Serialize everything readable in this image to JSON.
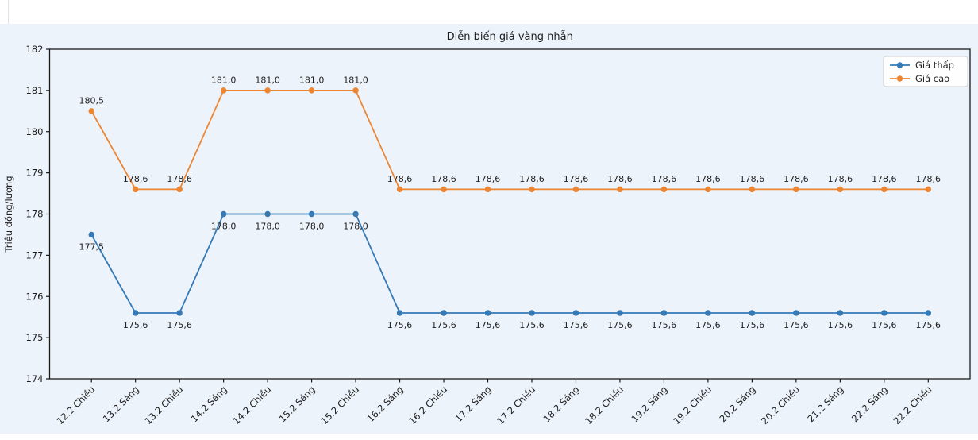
{
  "colors": {
    "figure_background": "#edf3fb",
    "axis": "#1a1a1a",
    "text": "#1f1f1f",
    "legend_border": "#cccccc",
    "legend_background": "#ffffff"
  },
  "chart_data": {
    "type": "line",
    "title": "Diễn biến giá vàng nhẫn",
    "xlabel": "",
    "ylabel": "Triệu đồng/lượng",
    "ylim": [
      174,
      182
    ],
    "yticks": [
      174,
      175,
      176,
      177,
      178,
      179,
      180,
      181,
      182
    ],
    "grid": false,
    "legend_position": "upper right",
    "categories": [
      "12.2 Chiều",
      "13.2 Sáng",
      "13.2 Chiều",
      "14.2 Sáng",
      "14.2 Chiều",
      "15.2 Sáng",
      "15.2 Chiều",
      "16.2 Sáng",
      "16.2 Chiều",
      "17.2 Sáng",
      "17.2 Chiều",
      "18.2 Sáng",
      "18.2 Chiều",
      "19.2 Sáng",
      "19.2 Chiều",
      "20.2 Sáng",
      "20.2 Chiều",
      "21.2 Sáng",
      "22.2 Sáng",
      "22.2 Chiều"
    ],
    "series": [
      {
        "name": "Giá thấp",
        "color": "#3579b5",
        "label_position": "below",
        "values": [
          177.5,
          175.6,
          175.6,
          178.0,
          178.0,
          178.0,
          178.0,
          175.6,
          175.6,
          175.6,
          175.6,
          175.6,
          175.6,
          175.6,
          175.6,
          175.6,
          175.6,
          175.6,
          175.6,
          175.6
        ],
        "labels": [
          "177,5",
          "175,6",
          "175,6",
          "178,0",
          "178,0",
          "178,0",
          "178,0",
          "175,6",
          "175,6",
          "175,6",
          "175,6",
          "175,6",
          "175,6",
          "175,6",
          "175,6",
          "175,6",
          "175,6",
          "175,6",
          "175,6",
          "175,6"
        ]
      },
      {
        "name": "Giá cao",
        "color": "#ec8633",
        "label_position": "above",
        "values": [
          180.5,
          178.6,
          178.6,
          181.0,
          181.0,
          181.0,
          181.0,
          178.6,
          178.6,
          178.6,
          178.6,
          178.6,
          178.6,
          178.6,
          178.6,
          178.6,
          178.6,
          178.6,
          178.6,
          178.6
        ],
        "labels": [
          "180,5",
          "178,6",
          "178,6",
          "181,0",
          "181,0",
          "181,0",
          "181,0",
          "178,6",
          "178,6",
          "178,6",
          "178,6",
          "178,6",
          "178,6",
          "178,6",
          "178,6",
          "178,6",
          "178,6",
          "178,6",
          "178,6",
          "178,6"
        ]
      }
    ]
  }
}
